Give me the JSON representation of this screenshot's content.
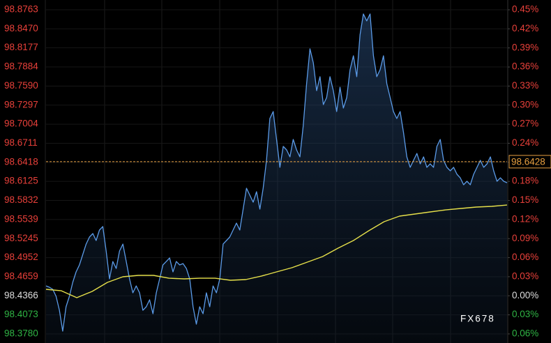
{
  "chart_data": {
    "type": "line",
    "watermark": "FX678",
    "ylim": [
      98.3641,
      98.8913
    ],
    "yticks": [
      {
        "value": 98.8763,
        "label": "98.8763"
      },
      {
        "value": 98.847,
        "label": "98.8470"
      },
      {
        "value": 98.8177,
        "label": "98.8177"
      },
      {
        "value": 98.7884,
        "label": "98.7884"
      },
      {
        "value": 98.759,
        "label": "98.7590"
      },
      {
        "value": 98.7297,
        "label": "98.7297"
      },
      {
        "value": 98.7004,
        "label": "98.7004"
      },
      {
        "value": 98.6711,
        "label": "98.6711"
      },
      {
        "value": 98.6418,
        "label": "98.6418"
      },
      {
        "value": 98.6125,
        "label": "98.6125"
      },
      {
        "value": 98.5832,
        "label": "98.5832"
      },
      {
        "value": 98.5539,
        "label": "98.5539"
      },
      {
        "value": 98.5245,
        "label": "98.5245"
      },
      {
        "value": 98.4952,
        "label": "98.4952"
      },
      {
        "value": 98.4659,
        "label": "98.4659"
      },
      {
        "value": 98.4366,
        "label": "98.4366"
      },
      {
        "value": 98.4073,
        "label": "98.4073"
      },
      {
        "value": 98.378,
        "label": "98.3780"
      }
    ],
    "y2lim": [
      -0.0743,
      0.4654
    ],
    "y2ticks": [
      {
        "value": 0.45,
        "label": "0.45%"
      },
      {
        "value": 0.42,
        "label": "0.42%"
      },
      {
        "value": 0.39,
        "label": "0.39%"
      },
      {
        "value": 0.36,
        "label": "0.36%"
      },
      {
        "value": 0.33,
        "label": "0.33%"
      },
      {
        "value": 0.3,
        "label": "0.30%"
      },
      {
        "value": 0.27,
        "label": "0.27%"
      },
      {
        "value": 0.24,
        "label": "0.24%"
      },
      {
        "value": 0.21,
        "label": "0.21%"
      },
      {
        "value": 0.18,
        "label": "0.18%"
      },
      {
        "value": 0.15,
        "label": "0.15%"
      },
      {
        "value": 0.12,
        "label": "0.12%"
      },
      {
        "value": 0.09,
        "label": "0.09%"
      },
      {
        "value": 0.06,
        "label": "0.06%"
      },
      {
        "value": 0.03,
        "label": "0.03%"
      },
      {
        "value": 0,
        "label": "0.00%"
      },
      {
        "value": -0.03,
        "label": "0.03%"
      },
      {
        "value": -0.06,
        "label": "0.06%"
      }
    ],
    "prev_close": 98.4366,
    "up_color": "#e8403a",
    "down_color": "#2fb344",
    "flat_color": "#dddddd",
    "grid": true,
    "last_price": 98.6428,
    "last_price_color": "#e8a040",
    "series": [
      {
        "color": "#5b9be8",
        "values": [
          98.4519,
          98.4498,
          98.4466,
          98.4359,
          98.4144,
          98.3823,
          98.4198,
          98.4359,
          98.4573,
          98.4734,
          98.4841,
          98.5002,
          98.5162,
          98.527,
          98.5323,
          98.5216,
          98.5377,
          98.543,
          98.5055,
          98.4627,
          98.4894,
          98.4787,
          98.5055,
          98.5162,
          98.4894,
          98.4627,
          98.4412,
          98.4519,
          98.4412,
          98.4144,
          98.4198,
          98.4305,
          98.4091,
          98.4412,
          98.4627,
          98.4841,
          98.4894,
          98.4948,
          98.4734,
          98.4894,
          98.4841,
          98.4862,
          98.4787,
          98.4627,
          98.4198,
          98.393,
          98.4198,
          98.4091,
          98.4412,
          98.4198,
          98.4519,
          98.4412,
          98.4627,
          98.5162,
          98.5216,
          98.527,
          98.5377,
          98.5484,
          98.5377,
          98.5698,
          98.602,
          98.5913,
          98.5805,
          98.5966,
          98.5698,
          98.602,
          98.6448,
          98.7091,
          98.7198,
          98.677,
          98.6341,
          98.6663,
          98.6609,
          98.6502,
          98.677,
          98.6609,
          98.6502,
          98.6984,
          98.7627,
          98.8163,
          98.7949,
          98.752,
          98.7734,
          98.7306,
          98.7413,
          98.7734,
          98.752,
          98.7198,
          98.7573,
          98.7252,
          98.7413,
          98.7841,
          98.8056,
          98.7734,
          98.8377,
          98.8699,
          98.8592,
          98.8699,
          98.8056,
          98.7734,
          98.7841,
          98.8056,
          98.7627,
          98.7413,
          98.7198,
          98.7091,
          98.7198,
          98.6877,
          98.6502,
          98.6341,
          98.6448,
          98.6555,
          98.6395,
          98.6502,
          98.6341,
          98.6395,
          98.6341,
          98.6663,
          98.677,
          98.6448,
          98.6341,
          98.6288,
          98.6341,
          98.6234,
          98.618,
          98.6073,
          98.6127,
          98.6073,
          98.6234,
          98.6341,
          98.6448,
          98.6341,
          98.6395,
          98.6502,
          98.6288,
          98.6127,
          98.618,
          98.6127,
          98.6105
        ]
      },
      {
        "color": "#e6e04a",
        "values": [
          98.4466,
          98.4444,
          98.4337,
          98.4434,
          98.4573,
          98.4659,
          98.468,
          98.468,
          98.4637,
          98.4627,
          98.4637,
          98.4637,
          98.4605,
          98.4616,
          98.4669,
          98.4734,
          98.4798,
          98.4884,
          98.497,
          98.5098,
          98.5216,
          98.5366,
          98.5505,
          98.5591,
          98.5623,
          98.5655,
          98.5687,
          98.5709,
          98.573,
          98.5741,
          98.5762
        ]
      }
    ]
  }
}
